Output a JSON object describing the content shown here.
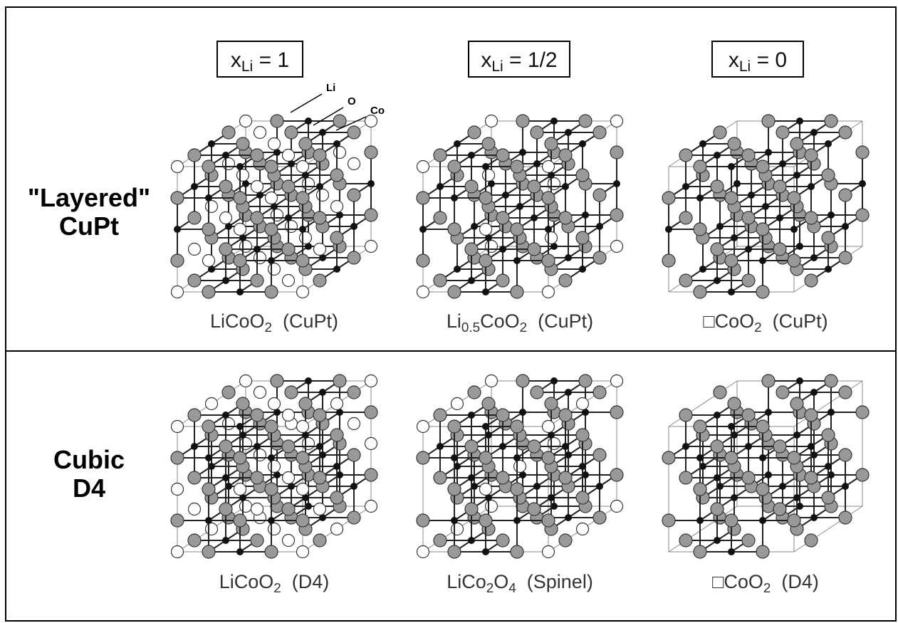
{
  "headers": [
    [
      {
        "text": "x"
      },
      {
        "sub": "Li"
      },
      {
        "text": " = 1"
      }
    ],
    [
      {
        "text": "x"
      },
      {
        "sub": "Li"
      },
      {
        "text": " = 1/2"
      }
    ],
    [
      {
        "text": "x"
      },
      {
        "sub": "Li"
      },
      {
        "text": " = 0"
      }
    ]
  ],
  "row_labels": [
    [
      "\"Layered\"",
      "CuPt"
    ],
    [
      "Cubic",
      "D4"
    ]
  ],
  "atom_labels": [
    "Li",
    "O",
    "Co"
  ],
  "captions": [
    [
      [
        {
          "text": "LiCoO"
        },
        {
          "sub": "2"
        },
        {
          "text": "  (CuPt)"
        }
      ],
      [
        {
          "text": "Li"
        },
        {
          "sub": "0.5"
        },
        {
          "text": "CoO"
        },
        {
          "sub": "2"
        },
        {
          "text": "  (CuPt)"
        }
      ],
      [
        {
          "text": "□CoO"
        },
        {
          "sub": "2"
        },
        {
          "text": "  (CuPt)"
        }
      ]
    ],
    [
      [
        {
          "text": "LiCoO"
        },
        {
          "sub": "2"
        },
        {
          "text": "  (D4)"
        }
      ],
      [
        {
          "text": "LiCo"
        },
        {
          "sub": "2"
        },
        {
          "text": "O"
        },
        {
          "sub": "4"
        },
        {
          "text": "  (Spinel)"
        }
      ],
      [
        {
          "text": "□CoO"
        },
        {
          "sub": "2"
        },
        {
          "text": "  (D4)"
        }
      ]
    ]
  ]
}
